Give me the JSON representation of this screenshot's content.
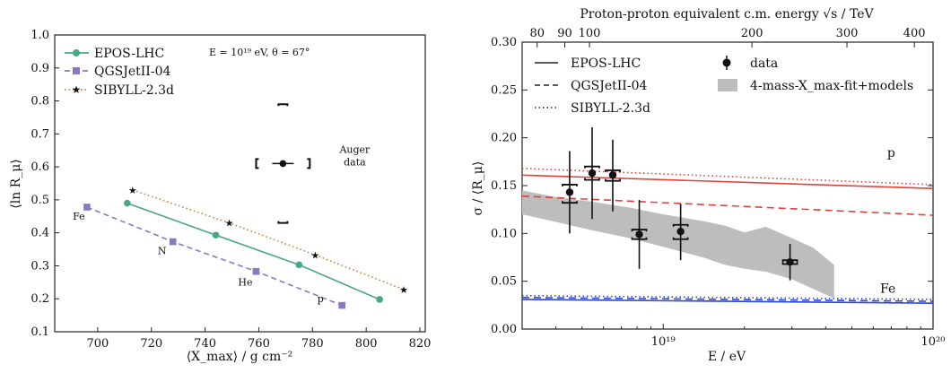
{
  "chart_data": [
    {
      "type": "scatter",
      "xlabel": "⟨X_max⟩ / g cm⁻²",
      "ylabel": "⟨ln R_μ⟩",
      "xlim": [
        684,
        822
      ],
      "ylim": [
        0.1,
        1.0
      ],
      "x_ticks": [
        700,
        720,
        740,
        760,
        780,
        800,
        820
      ],
      "y_ticks": [
        0.1,
        0.2,
        0.3,
        0.4,
        0.5,
        0.6,
        0.7,
        0.8,
        0.9,
        1.0
      ],
      "x_tick_labels": [
        "700",
        "720",
        "740",
        "760",
        "780",
        "800",
        "820"
      ],
      "y_tick_labels": [
        "0.1",
        "0.2",
        "0.3",
        "0.4",
        "0.5",
        "0.6",
        "0.7",
        "0.8",
        "0.9",
        "1.0"
      ],
      "annotation_energy": "E = 10¹⁹ eV, θ = 67°",
      "legend": "top-left",
      "series": [
        {
          "name": "EPOS-LHC",
          "color": "#4aa784",
          "marker": "circle",
          "line": "solid",
          "x": [
            711,
            744,
            775,
            805
          ],
          "y": [
            0.49,
            0.393,
            0.303,
            0.198
          ]
        },
        {
          "name": "QGSJetII-04",
          "color": "#8a79c2",
          "marker": "square",
          "line": "dashed",
          "x": [
            696,
            728,
            759,
            791
          ],
          "y": [
            0.478,
            0.373,
            0.283,
            0.18
          ]
        },
        {
          "name": "SIBYLL-2.3d",
          "color": "#d07a3a",
          "marker": "star",
          "line": "dotted",
          "x": [
            713,
            749,
            781,
            814
          ],
          "y": [
            0.53,
            0.43,
            0.333,
            0.228
          ]
        }
      ],
      "composition_labels": [
        {
          "text": "Fe",
          "x": 693,
          "y": 0.44
        },
        {
          "text": "N",
          "x": 724,
          "y": 0.335
        },
        {
          "text": "He",
          "x": 755,
          "y": 0.24
        },
        {
          "text": "p",
          "x": 783,
          "y": 0.19
        }
      ],
      "auger": {
        "label_line1": "Auger",
        "label_line2": "data",
        "x": 769,
        "y": 0.61,
        "x_err_stat": 4,
        "x_sys": 10,
        "y_sys_low": 0.43,
        "y_sys_high": 0.79
      }
    },
    {
      "type": "line",
      "xlabel": "E / eV",
      "ylabel": "σ / ⟨R_μ⟩",
      "top_xlabel": "Proton-proton equivalent c.m. energy √s / TeV",
      "xscale": "log",
      "xlim": [
        3e+18,
        1e+20
      ],
      "ylim": [
        0.0,
        0.3
      ],
      "y_ticks": [
        0.0,
        0.05,
        0.1,
        0.15,
        0.2,
        0.25,
        0.3
      ],
      "y_tick_labels": [
        "0.00",
        "0.05",
        "0.10",
        "0.15",
        "0.20",
        "0.25",
        "0.30"
      ],
      "x_ticks": [
        1e+19,
        1e+20
      ],
      "x_tick_labels": [
        "10¹⁹",
        "10²⁰"
      ],
      "top_ticks": [
        80,
        90,
        100,
        200,
        300,
        400
      ],
      "top_tick_labels": [
        "80",
        "90",
        "100",
        "200",
        "300",
        "400"
      ],
      "legend": "top-left",
      "composition_labels": [
        {
          "text": "p",
          "color": "#e0413a",
          "x": 7e+19,
          "y": 0.18
        },
        {
          "text": "Fe",
          "color": "#2c45d8",
          "x": 6.8e+19,
          "y": 0.038
        }
      ],
      "legend_labels": {
        "epos": "EPOS-LHC",
        "qgs": "QGSJetII-04",
        "sib": "SIBYLL-2.3d",
        "data": "data",
        "band": "4-mass-X_max-fit+models"
      },
      "model_lines": [
        {
          "name": "EPOS-LHC p",
          "color": "#e0413a",
          "dash": "solid",
          "y_start": 0.161,
          "y_end": 0.147
        },
        {
          "name": "QGSJetII-04 p",
          "color": "#e0413a",
          "dash": "dashed",
          "y_start": 0.139,
          "y_end": 0.119
        },
        {
          "name": "SIBYLL-2.3d p",
          "color": "#e0413a",
          "dash": "dotted",
          "y_start": 0.168,
          "y_end": 0.151
        },
        {
          "name": "EPOS-LHC Fe",
          "color": "#2c45d8",
          "dash": "solid",
          "y_start": 0.031,
          "y_end": 0.027
        },
        {
          "name": "QGSJetII-04 Fe",
          "color": "#2c45d8",
          "dash": "dashed",
          "y_start": 0.033,
          "y_end": 0.029
        },
        {
          "name": "SIBYLL-2.3d Fe",
          "color": "#2c45d8",
          "dash": "dotted",
          "y_start": 0.035,
          "y_end": 0.031
        }
      ],
      "band": {
        "color": "#bdbdbd",
        "upper": [
          [
            3e+18,
            0.145
          ],
          [
            4e+18,
            0.138
          ],
          [
            5.5e+18,
            0.133
          ],
          [
            7.5e+18,
            0.127
          ],
          [
            1e+19,
            0.12
          ],
          [
            1.4e+19,
            0.113
          ],
          [
            1.7e+19,
            0.108
          ],
          [
            2e+19,
            0.101
          ],
          [
            2.4e+19,
            0.107
          ],
          [
            3e+19,
            0.095
          ],
          [
            3.6e+19,
            0.085
          ],
          [
            4.3e+19,
            0.067
          ]
        ],
        "lower": [
          [
            4.3e+19,
            0.032
          ],
          [
            3.6e+19,
            0.042
          ],
          [
            3e+19,
            0.052
          ],
          [
            2.4e+19,
            0.06
          ],
          [
            2e+19,
            0.063
          ],
          [
            1.7e+19,
            0.067
          ],
          [
            1.4e+19,
            0.075
          ],
          [
            1e+19,
            0.086
          ],
          [
            7.5e+18,
            0.095
          ],
          [
            5.5e+18,
            0.103
          ],
          [
            4e+18,
            0.112
          ],
          [
            3e+18,
            0.12
          ]
        ]
      },
      "data_points": [
        {
          "x": 4.5e+18,
          "y": 0.143,
          "stat_lo": 0.043,
          "stat_hi": 0.043,
          "sys_lo": 0.011,
          "sys_hi": 0.008
        },
        {
          "x": 5.45e+18,
          "y": 0.163,
          "stat_lo": 0.048,
          "stat_hi": 0.048,
          "sys_lo": 0.007,
          "sys_hi": 0.007
        },
        {
          "x": 6.5e+18,
          "y": 0.161,
          "stat_lo": 0.038,
          "stat_hi": 0.037,
          "sys_lo": 0.006,
          "sys_hi": 0.005
        },
        {
          "x": 8.15e+18,
          "y": 0.099,
          "stat_lo": 0.036,
          "stat_hi": 0.036,
          "sys_lo": 0.005,
          "sys_hi": 0.005
        },
        {
          "x": 1.16e+19,
          "y": 0.102,
          "stat_lo": 0.03,
          "stat_hi": 0.029,
          "sys_lo": 0.008,
          "sys_hi": 0.007
        },
        {
          "x": 2.95e+19,
          "y": 0.07,
          "stat_lo": 0.019,
          "stat_hi": 0.019,
          "sys_lo": 0.002,
          "sys_hi": 0.002
        }
      ]
    }
  ]
}
